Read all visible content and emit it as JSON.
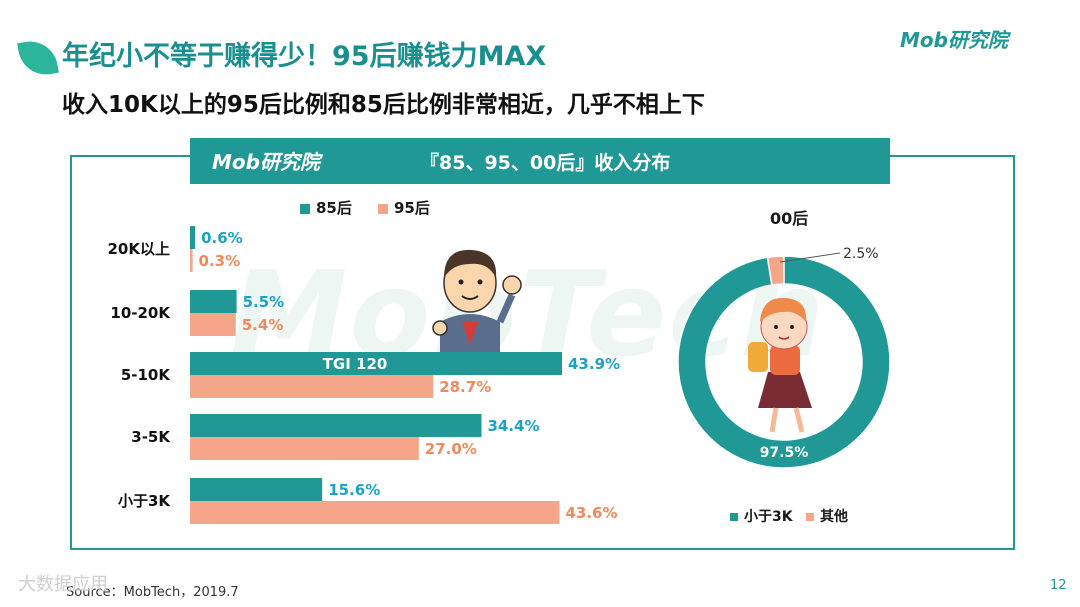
{
  "header": {
    "title": "年纪小不等于赚得少！95后赚钱力MAX",
    "subtitle": "收入10K以上的95后比例和85后比例非常相近，几乎不相上下",
    "brand": "Mob研究院"
  },
  "panel": {
    "band_logo": "Mob研究院",
    "band_title": "『85、95、00后』收入分布",
    "watermark": "MobTech"
  },
  "colors": {
    "teal": "#1f9896",
    "salmon": "#f4a58a",
    "teal_text": "#1aa3c8",
    "salmon_text": "#f08a5d"
  },
  "chart_data": [
    {
      "type": "bar",
      "orientation": "horizontal",
      "categories": [
        "20K以上",
        "10-20K",
        "5-10K",
        "3-5K",
        "小于3K"
      ],
      "series": [
        {
          "name": "85后",
          "values": [
            0.6,
            5.5,
            43.9,
            34.4,
            15.6
          ],
          "labels": [
            "0.6%",
            "5.5%",
            "43.9%",
            "34.4%",
            "15.6%"
          ]
        },
        {
          "name": "95后",
          "values": [
            0.3,
            5.4,
            28.7,
            27.0,
            43.6
          ],
          "labels": [
            "0.3%",
            "5.4%",
            "28.7%",
            "27.0%",
            "43.6%"
          ]
        }
      ],
      "annotation": "TGI 120",
      "xlim": [
        0,
        45
      ]
    },
    {
      "type": "pie",
      "title": "00后",
      "donut": true,
      "slices": [
        {
          "name": "小于3K",
          "value": 97.5,
          "label": "97.5%"
        },
        {
          "name": "其他",
          "value": 2.5,
          "label": "2.5%"
        }
      ]
    }
  ],
  "footer": {
    "source": "Source：MobTech，2019.7",
    "page": "12",
    "corner_watermark": "大数据应用"
  }
}
